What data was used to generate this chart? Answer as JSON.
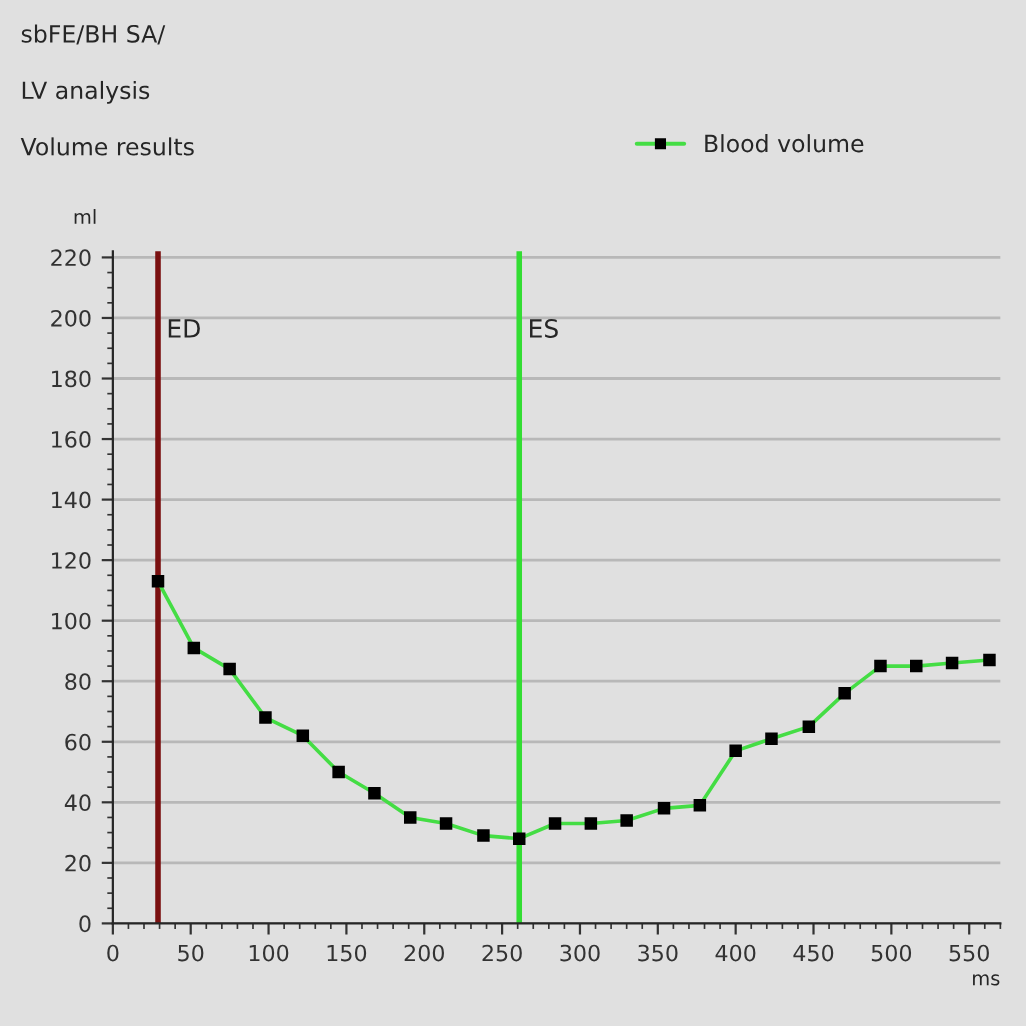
{
  "chart_data": {
    "type": "line",
    "title": "sbFE/BH SA/",
    "subtitle": "LV analysis",
    "annotations": [
      "Volume results"
    ],
    "xlabel": "ms",
    "ylabel": "ml",
    "x": [
      29,
      52,
      75,
      98,
      122,
      145,
      168,
      191,
      214,
      238,
      261,
      284,
      307,
      330,
      354,
      377,
      400,
      423,
      447,
      470,
      493,
      516,
      539,
      563
    ],
    "series": [
      {
        "name": "Blood volume",
        "color": "#44dd44",
        "values": [
          113,
          91,
          84,
          68,
          62,
          50,
          43,
          35,
          33,
          29,
          28,
          33,
          33,
          34,
          38,
          39,
          57,
          61,
          65,
          76,
          85,
          85,
          86,
          87
        ]
      }
    ],
    "xlim": [
      0,
      570
    ],
    "xticks": [
      0,
      50,
      100,
      150,
      200,
      250,
      300,
      350,
      400,
      450,
      500,
      550
    ],
    "ylim": [
      0,
      222
    ],
    "yticks": [
      0,
      20,
      40,
      60,
      80,
      100,
      120,
      140,
      160,
      180,
      200,
      220
    ],
    "ref_lines": [
      {
        "axis": "x",
        "value": 29,
        "label": "ED",
        "color": "#7a1010"
      },
      {
        "axis": "x",
        "value": 261,
        "label": "ES",
        "color": "#33dd33"
      }
    ],
    "grid": "y",
    "legend": "top right",
    "marker": "square",
    "line_style": "solid"
  }
}
